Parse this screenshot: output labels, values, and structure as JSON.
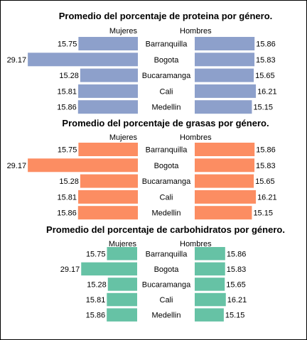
{
  "chart_data": [
    {
      "type": "bar",
      "title": "Promedio del porcentaje de proteina por género.",
      "left_label": "Mujeres",
      "right_label": "Hombres",
      "categories": [
        "Barranquilla",
        "Bogota",
        "Bucaramanga",
        "Cali",
        "Medellin"
      ],
      "series": [
        {
          "name": "Mujeres",
          "values": [
            15.75,
            29.17,
            15.28,
            15.81,
            15.86
          ]
        },
        {
          "name": "Hombres",
          "values": [
            15.86,
            15.83,
            15.65,
            16.21,
            15.15
          ]
        }
      ],
      "value_labels": {
        "left": [
          "15.75",
          "29.17",
          "15.28",
          "15.81",
          "15.86"
        ],
        "right": [
          "15.86",
          "15.83",
          "15.65",
          "16.21",
          "15.15"
        ]
      },
      "color": "#8da0cb"
    },
    {
      "type": "bar",
      "title": "Promedio del porcentaje de grasas por género.",
      "left_label": "Mujeres",
      "right_label": "Hombres",
      "categories": [
        "Barranquilla",
        "Bogota",
        "Bucaramanga",
        "Cali",
        "Medellin"
      ],
      "series": [
        {
          "name": "Mujeres",
          "values": [
            15.75,
            29.17,
            15.28,
            15.81,
            15.86
          ]
        },
        {
          "name": "Hombres",
          "values": [
            15.86,
            15.83,
            15.65,
            16.21,
            15.15
          ]
        }
      ],
      "value_labels": {
        "left": [
          "15.75",
          "29.17",
          "15.28",
          "15.81",
          "15.86"
        ],
        "right": [
          "15.86",
          "15.83",
          "15.65",
          "16.21",
          "15.15"
        ]
      },
      "color": "#fc8d62"
    },
    {
      "type": "bar",
      "title": "Promedio del porcentaje de carbohidratos por género.",
      "left_label": "Mujeres",
      "right_label": "Hombres",
      "categories": [
        "Barranquilla",
        "Bogota",
        "Bucaramanga",
        "Cali",
        "Medellin"
      ],
      "series": [
        {
          "name": "Mujeres",
          "values": [
            15.75,
            29.17,
            15.28,
            15.81,
            15.86
          ]
        },
        {
          "name": "Hombres",
          "values": [
            15.86,
            15.83,
            15.65,
            16.21,
            15.15
          ]
        }
      ],
      "value_labels": {
        "left": [
          "15.75",
          "29.17",
          "15.28",
          "15.81",
          "15.86"
        ],
        "right": [
          "15.86",
          "15.83",
          "15.65",
          "16.21",
          "15.15"
        ]
      },
      "color": "#66c2a5"
    }
  ]
}
